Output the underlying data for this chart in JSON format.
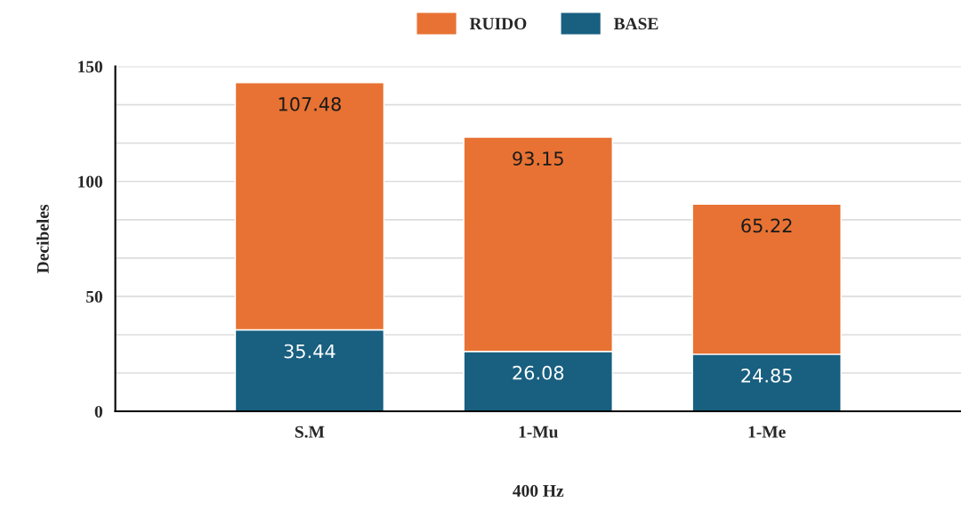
{
  "chart_data": {
    "type": "bar",
    "stacked": true,
    "xlabel": "400 Hz",
    "ylabel": "Decibeles",
    "categories": [
      "S.M",
      "1-Mu",
      "1-Me"
    ],
    "series": [
      {
        "name": "BASE",
        "color": "#185f80",
        "values": [
          35.44,
          26.08,
          24.85
        ]
      },
      {
        "name": "RUIDO",
        "color": "#e87233",
        "values": [
          107.48,
          93.15,
          65.22
        ]
      }
    ],
    "ylim": [
      0,
      150
    ],
    "yticks": [
      0,
      {
        "value": 16.67,
        "label": null
      },
      {
        "value": 33.33,
        "label": null
      },
      50,
      {
        "value": 66.67,
        "label": null
      },
      {
        "value": 83.33,
        "label": null
      },
      100,
      {
        "value": 116.67,
        "label": null
      },
      {
        "value": 133.33,
        "label": null
      },
      150
    ],
    "grid": "y",
    "legend": "top",
    "data_labels": true
  }
}
